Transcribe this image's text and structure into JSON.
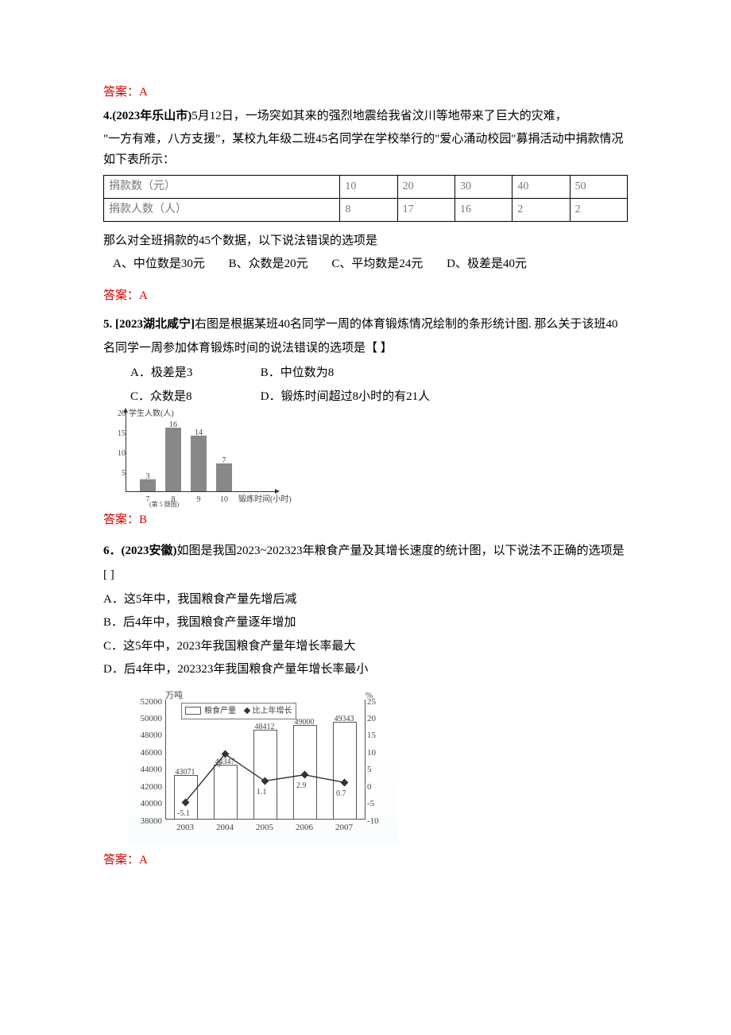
{
  "q3": {
    "answer": "答案：A"
  },
  "q4": {
    "heading_prefix": "4.(2023年乐山市)",
    "intro1": "5月12日，一场突如其来的强烈地震给我省汶川等地带来了巨大的灾难，",
    "intro2": "\"一方有难，八方支援\"，某校九年级二班45名同学在学校举行的\"爱心涌动校园\"募捐活动中捐款情况如下表所示：",
    "table": {
      "row1_label": "捐款数（元）",
      "row2_label": "捐款人数（人）",
      "amounts": [
        "10",
        "20",
        "30",
        "40",
        "50"
      ],
      "counts": [
        "8",
        "17",
        "16",
        "2",
        "2"
      ]
    },
    "question": "那么对全班捐款的45个数据，以下说法错误的选项是",
    "options": {
      "A": "A、中位数是30元",
      "B": "B、众数是20元",
      "C": "C、平均数是24元",
      "D": "D、极差是40元"
    },
    "answer": "答案：A"
  },
  "q5": {
    "heading_prefix": "5. [2023湖北咸宁]",
    "intro": "右图是根据某班40名同学一周的体育锻炼情况绘制的条形统计图. 那么关于该班40名同学一周参加体育锻炼时间的说法错误的选项是【 】",
    "options": {
      "A": "A．极差是3",
      "B": "B．中位数为8",
      "C": "C．众数是8",
      "D": "D．锻炼时间超过8小时的有21人"
    },
    "chart": {
      "ylabel": "学生人数(人)",
      "xlabel": "锻炼时间(小时)",
      "xnote": "(第 5 题图)",
      "ylim": [
        0,
        20
      ],
      "yticks": [
        "5",
        "10",
        "15",
        "20"
      ],
      "categories": [
        "7",
        "8",
        "9",
        "10"
      ],
      "values": [
        3,
        16,
        14,
        7
      ],
      "bar_color": "#888888"
    },
    "answer": "答案：B"
  },
  "q6": {
    "heading_prefix": "6．(2023安徽)",
    "intro": "如图是我国2023~202323年粮食产量及其增长速度的统计图，以下说法不正确的选项是[  ]",
    "options": {
      "A": "A．这5年中，我国粮食产量先增后减",
      "B": "B．后4年中，我国粮食产量逐年增加",
      "C": "C．这5年中，2023年我国粮食产量年增长率最大",
      "D": "D．后4年中，202323年我国粮食产量年增长率最小"
    },
    "chart": {
      "y_unit_left": "万吨",
      "y_unit_right": "%",
      "categories": [
        "2003",
        "2004",
        "2005",
        "2006",
        "2007"
      ],
      "bar_values": [
        43071,
        44347,
        48412,
        49000,
        49343
      ],
      "line_values": [
        -5.1,
        9.0,
        1.1,
        2.9,
        0.7
      ],
      "ylim_left": [
        38000,
        52000
      ],
      "ytick_left": [
        "38000",
        "40000",
        "42000",
        "44000",
        "46000",
        "48000",
        "50000",
        "52000"
      ],
      "ylim_right": [
        -10,
        25
      ],
      "ytick_right": [
        "-10",
        "-5",
        "0",
        "5",
        "10",
        "15",
        "20",
        "25"
      ],
      "legend_bar": "粮食产量",
      "legend_line": "比上年增长",
      "bar_fill": "#ffffff",
      "bar_border": "#555555",
      "line_color": "#333333"
    },
    "answer": "答案：A"
  }
}
